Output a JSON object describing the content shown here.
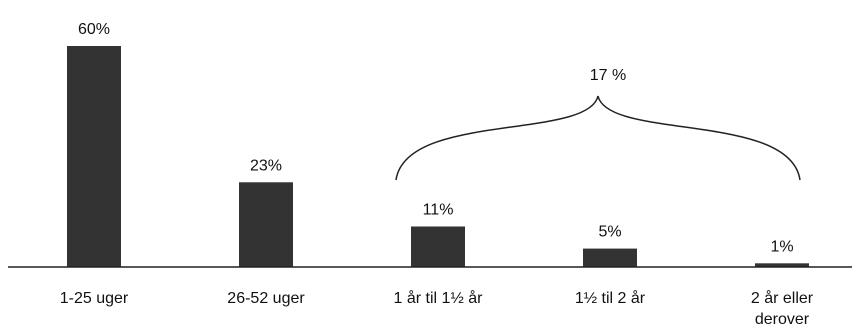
{
  "chart_data": {
    "type": "bar",
    "categories": [
      [
        "1-25 uger"
      ],
      [
        "26-52 uger"
      ],
      [
        "1 år til 1½ år"
      ],
      [
        "1½ til 2 år"
      ],
      [
        "2 år eller",
        "derover"
      ]
    ],
    "values": [
      60,
      23,
      11,
      5,
      1
    ],
    "value_labels": [
      "60%",
      "23%",
      "11%",
      "5%",
      "1%"
    ],
    "ylim": [
      0,
      60
    ],
    "bar_color": "#333333",
    "grid": false,
    "legend": "none",
    "annotation": {
      "label": "17 %",
      "spans_categories": [
        2,
        4
      ]
    }
  }
}
